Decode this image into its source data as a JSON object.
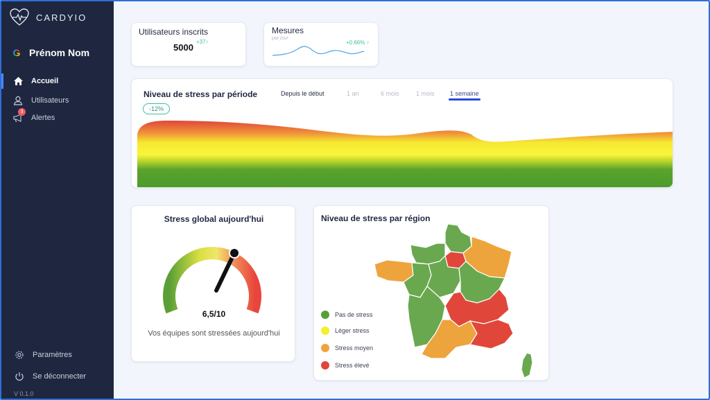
{
  "app": {
    "name": "CARDYIO",
    "version": "V 0.1.0"
  },
  "user": {
    "name": "Prénom Nom",
    "provider_icon": "google-icon"
  },
  "nav": {
    "items": [
      {
        "label": "Accueil",
        "icon": "home-icon",
        "active": true
      },
      {
        "label": "Utilisateurs",
        "icon": "user-icon",
        "active": false
      },
      {
        "label": "Alertes",
        "icon": "megaphone-icon",
        "active": false,
        "badge": "3"
      }
    ],
    "bottom": [
      {
        "label": "Paramètres",
        "icon": "gear-icon"
      },
      {
        "label": "Se déconnecter",
        "icon": "power-icon"
      }
    ]
  },
  "stats": {
    "users": {
      "title": "Utilisateurs inscrits",
      "value": "5000",
      "delta": "+37↑"
    },
    "measures": {
      "title": "Mesures",
      "subtitle": "par jour",
      "delta": "+0.66% ↑"
    }
  },
  "stress_period": {
    "title": "Niveau de stress par période",
    "change": "-12%",
    "tabs": [
      "Depuis le début",
      "1 an",
      "6 mois",
      "1 mois",
      "1 semaine"
    ],
    "selected_tab": "1 semaine"
  },
  "global_stress": {
    "title": "Stress global aujourd'hui",
    "score": "6,5/10",
    "score_value": 6.5,
    "score_max": 10,
    "message": "Vos équipes sont stressées aujourd'hui"
  },
  "region_stress": {
    "title": "Niveau de stress par région",
    "legend": [
      {
        "label": "Pas de stress",
        "color": "#5a9e38"
      },
      {
        "label": "Léger stress",
        "color": "#f4f02a"
      },
      {
        "label": "Stress moyen",
        "color": "#eea43c"
      },
      {
        "label": "Stress élevé",
        "color": "#e0473a"
      }
    ]
  },
  "colors": {
    "accent": "#2a48d8",
    "positive": "#3cbf9e",
    "sidebar": "#1f2740"
  }
}
